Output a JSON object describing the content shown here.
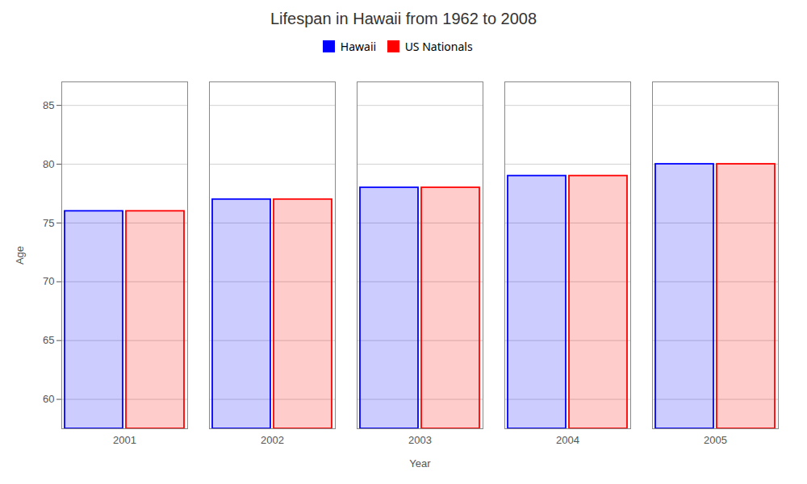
{
  "chart_data": {
    "type": "bar",
    "title": "Lifespan in Hawaii from 1962 to 2008",
    "xlabel": "Year",
    "ylabel": "Age",
    "categories": [
      "2001",
      "2002",
      "2003",
      "2004",
      "2005"
    ],
    "series": [
      {
        "name": "Hawaii",
        "color": "#0000ff",
        "values": [
          76,
          77,
          78,
          79,
          80
        ]
      },
      {
        "name": "US Nationals",
        "color": "#ff0000",
        "values": [
          76,
          77,
          78,
          79,
          80
        ]
      }
    ],
    "ylim": [
      57.5,
      87
    ],
    "yticks": [
      60,
      65,
      70,
      75,
      80,
      85
    ],
    "grid": true,
    "legend": "top"
  }
}
